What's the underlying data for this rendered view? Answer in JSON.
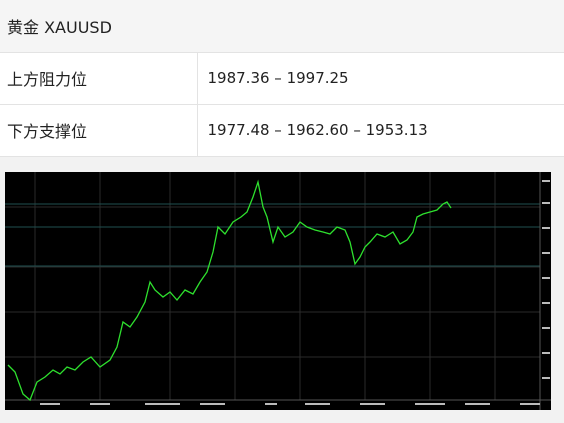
{
  "header": {
    "title": "黄金  XAUUSD"
  },
  "table": {
    "rows": [
      [
        "上方阻力位",
        "1987.36 – 1997.25"
      ],
      [
        "下方支撑位",
        "1977.48 – 1962.60 – 1953.13"
      ]
    ]
  }
}
